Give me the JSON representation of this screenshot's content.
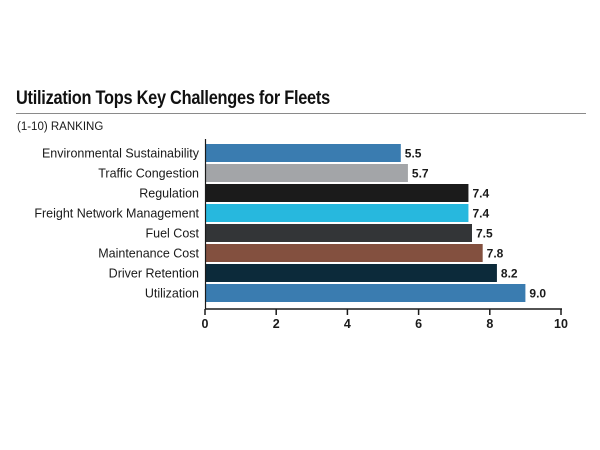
{
  "chart_data": {
    "type": "bar",
    "orientation": "horizontal",
    "title": "Utilization Tops Key Challenges for Fleets",
    "subtitle": "(1-10) RANKING",
    "categories": [
      "Environmental Sustainability",
      "Traffic Congestion",
      "Regulation",
      "Freight Network Management",
      "Fuel Cost",
      "Maintenance Cost",
      "Driver Retention",
      "Utilization"
    ],
    "values": [
      5.5,
      5.7,
      7.4,
      7.4,
      7.5,
      7.8,
      8.2,
      9.0
    ],
    "value_labels": [
      "5.5",
      "5.7",
      "7.4",
      "7.4",
      "7.5",
      "7.8",
      "8.2",
      "9.0"
    ],
    "bar_colors": [
      "#3a7cb0",
      "#a3a5a8",
      "#1b1b1b",
      "#27b8de",
      "#333537",
      "#83503f",
      "#0c2a3a",
      "#3a7cb0"
    ],
    "xlim": [
      0,
      10
    ],
    "xticks": [
      0,
      2,
      4,
      6,
      8,
      10
    ],
    "xlabel": "",
    "ylabel": "",
    "grid": false,
    "legend": "none"
  }
}
